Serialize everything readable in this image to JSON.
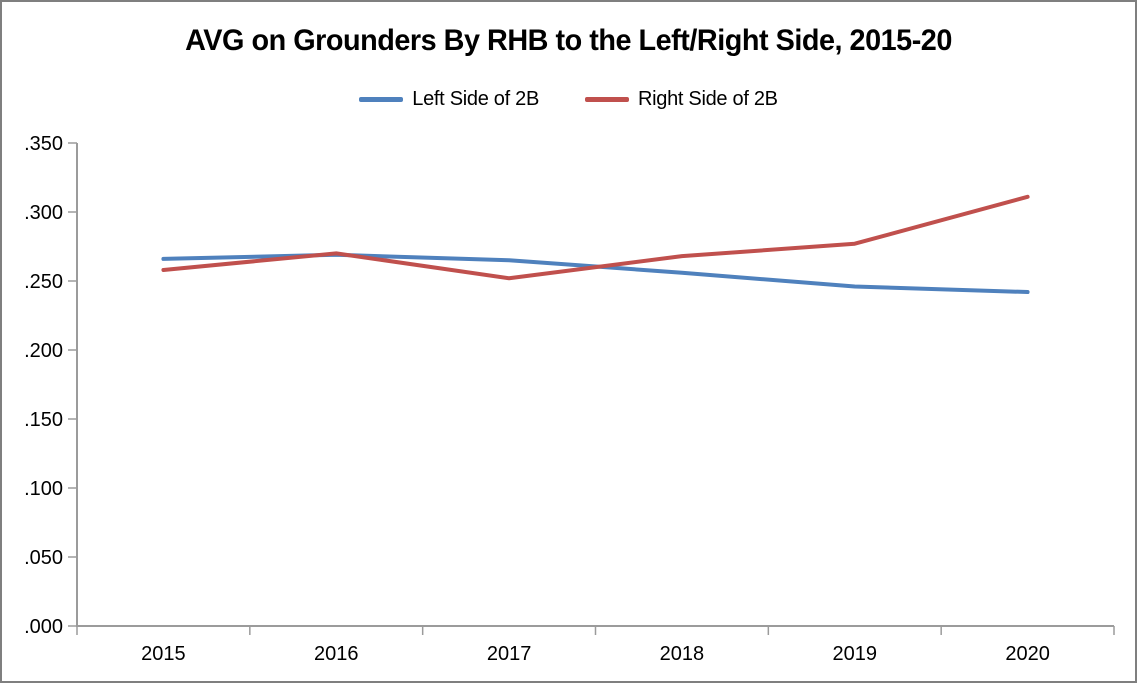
{
  "window": {
    "background": "#ffffff",
    "border_color": "#7f7f7f"
  },
  "chart_data": {
    "type": "line",
    "title": "AVG on Grounders By RHB to the Left/Right Side, 2015-20",
    "categories": [
      "2015",
      "2016",
      "2017",
      "2018",
      "2019",
      "2020"
    ],
    "series": [
      {
        "name": "Left Side of 2B",
        "color": "#4F81BD",
        "values": [
          0.266,
          0.269,
          0.265,
          0.256,
          0.246,
          0.242
        ]
      },
      {
        "name": "Right Side of 2B",
        "color": "#C0504D",
        "values": [
          0.258,
          0.27,
          0.252,
          0.268,
          0.277,
          0.311
        ]
      }
    ],
    "x_axis": {
      "tick_labels": [
        "2015",
        "2016",
        "2017",
        "2018",
        "2019",
        "2020"
      ]
    },
    "y_axis": {
      "min": 0.0,
      "max": 0.35,
      "tick_step": 0.05,
      "tick_labels": [
        ".000",
        ".050",
        ".100",
        ".150",
        ".200",
        ".250",
        ".300",
        ".350"
      ]
    },
    "legend_position": "top",
    "grid": false,
    "line_width": 4,
    "axis_color": "#9B9B9B",
    "text_color": "#000000"
  }
}
